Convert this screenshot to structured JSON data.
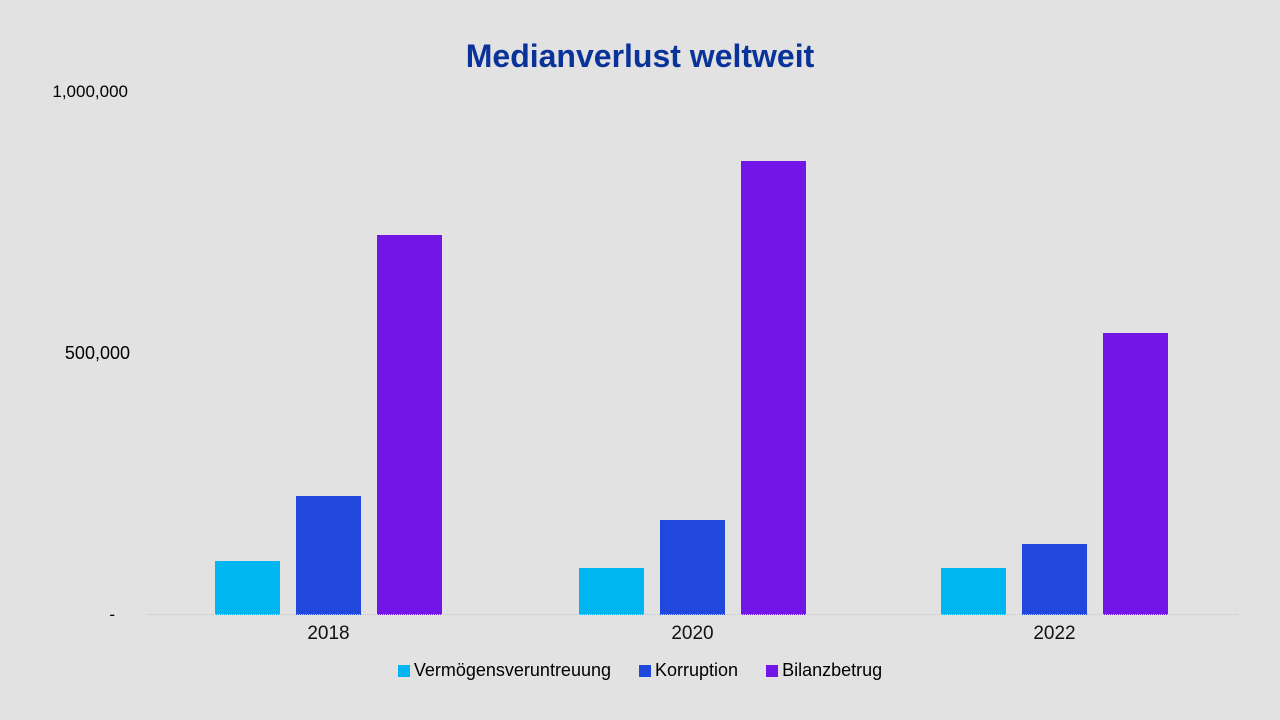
{
  "chart_data": {
    "type": "bar",
    "title": "Medianverlust weltweit",
    "title_color": "#0a3399",
    "categories": [
      "2018",
      "2020",
      "2022"
    ],
    "series": [
      {
        "name": "Vermögensveruntreuung",
        "color": "#00b6f0",
        "values": [
          114000,
          100000,
          100000
        ]
      },
      {
        "name": "Korruption",
        "color": "#2148dd",
        "values": [
          250000,
          200000,
          150000
        ]
      },
      {
        "name": "Bilanzbetrug",
        "color": "#7315e6",
        "values": [
          800000,
          954000,
          593000
        ]
      }
    ],
    "y_axis": {
      "tick_labels": [
        "-",
        "500,000",
        "1,000,000"
      ],
      "scale_max": 1100000,
      "ylim": [
        0,
        1100000
      ]
    },
    "xlabel": "",
    "ylabel": "",
    "grid": false,
    "legend_position": "bottom",
    "background_color": "#e4e4e4"
  }
}
